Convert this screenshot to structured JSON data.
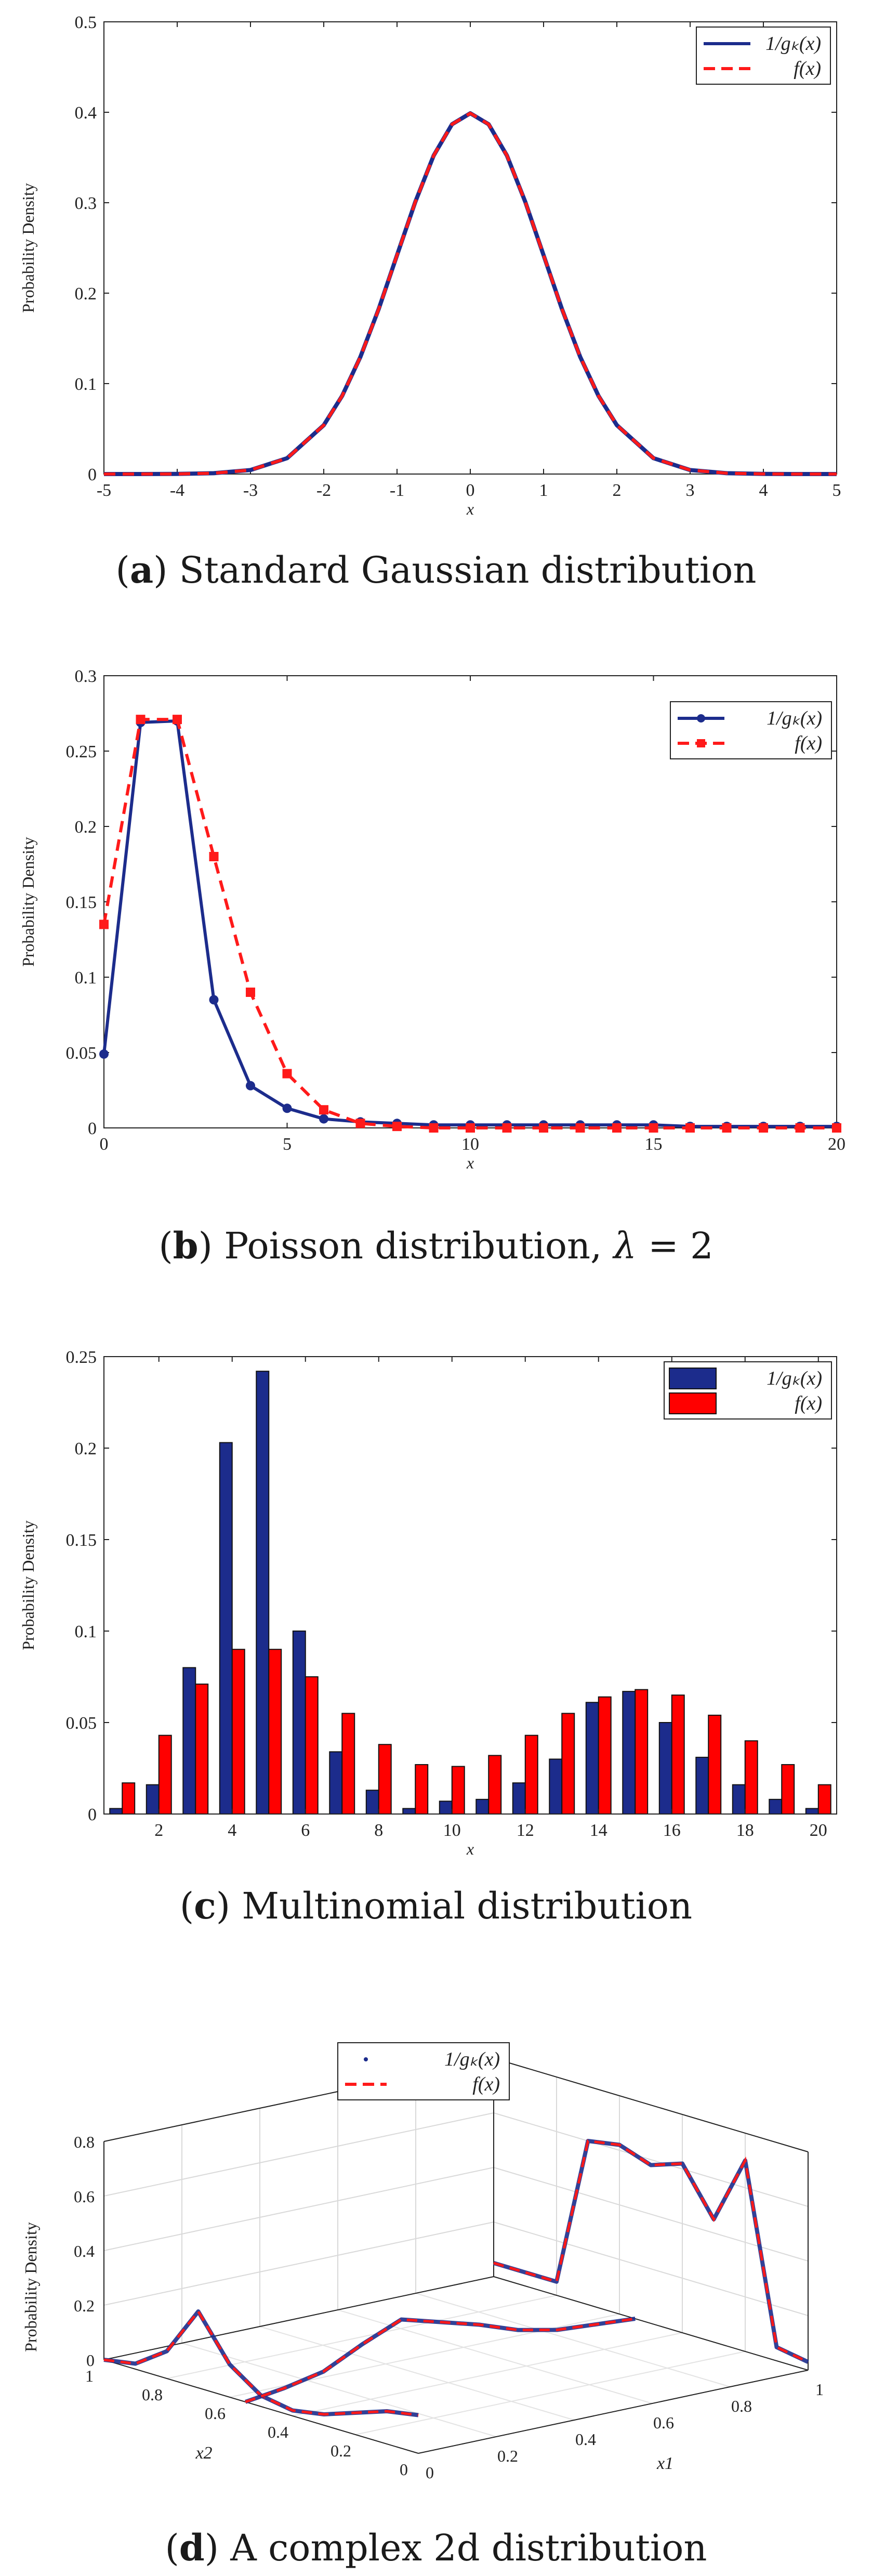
{
  "chart_data": [
    {
      "type": "line",
      "id": "a",
      "ylabel": "Probability Density",
      "xlabel": "x",
      "xlim": [
        -5,
        5
      ],
      "ylim": [
        0,
        0.5
      ],
      "xticks": [
        -5,
        -4,
        -3,
        -2,
        -1,
        0,
        1,
        2,
        3,
        4,
        5
      ],
      "yticks": [
        0,
        0.1,
        0.2,
        0.3,
        0.4,
        0.5
      ],
      "xtick_labels": [
        "-5",
        "-4",
        "-3",
        "-2",
        "-1",
        "0",
        "1",
        "2",
        "3",
        "4",
        "5"
      ],
      "ytick_labels": [
        "0",
        "0.1",
        "0.2",
        "0.3",
        "0.4",
        "0.5"
      ],
      "legend_position": "top-right",
      "series": [
        {
          "name": "1/g_k(x)",
          "label": "1/gₖ(x)",
          "color": "#1c2c8c",
          "style": "solid",
          "x": [
            -5,
            -4.5,
            -4,
            -3.5,
            -3,
            -2.5,
            -2,
            -1.75,
            -1.5,
            -1.25,
            -1,
            -0.75,
            -0.5,
            -0.25,
            0,
            0.25,
            0.5,
            0.75,
            1,
            1.25,
            1.5,
            1.75,
            2,
            2.5,
            3,
            3.5,
            4,
            4.5,
            5
          ],
          "y": [
            0,
            0,
            0.0001,
            0.0009,
            0.0044,
            0.0175,
            0.054,
            0.0863,
            0.1295,
            0.1826,
            0.242,
            0.3011,
            0.3521,
            0.3867,
            0.3989,
            0.3867,
            0.3521,
            0.3011,
            0.242,
            0.1826,
            0.1295,
            0.0863,
            0.054,
            0.0175,
            0.0044,
            0.0009,
            0.0001,
            0,
            0
          ]
        },
        {
          "name": "f(x)",
          "label": "f(x)",
          "color": "#ff1a1a",
          "style": "dashed",
          "x": [
            -5,
            -4.5,
            -4,
            -3.5,
            -3,
            -2.5,
            -2,
            -1.75,
            -1.5,
            -1.25,
            -1,
            -0.75,
            -0.5,
            -0.25,
            0,
            0.25,
            0.5,
            0.75,
            1,
            1.25,
            1.5,
            1.75,
            2,
            2.5,
            3,
            3.5,
            4,
            4.5,
            5
          ],
          "y": [
            0,
            0,
            0.0001,
            0.0009,
            0.0044,
            0.0175,
            0.054,
            0.0863,
            0.1295,
            0.1826,
            0.242,
            0.3011,
            0.3521,
            0.3867,
            0.3989,
            0.3867,
            0.3521,
            0.3011,
            0.242,
            0.1826,
            0.1295,
            0.0863,
            0.054,
            0.0175,
            0.0044,
            0.0009,
            0.0001,
            0,
            0
          ]
        }
      ],
      "caption": {
        "letter": "a",
        "text": " Standard Gaussian distribution"
      }
    },
    {
      "type": "line",
      "id": "b",
      "ylabel": "Probability Density",
      "xlabel": "x",
      "xlim": [
        0,
        20
      ],
      "ylim": [
        0,
        0.3
      ],
      "xticks": [
        0,
        5,
        10,
        15,
        20
      ],
      "yticks": [
        0,
        0.05,
        0.1,
        0.15,
        0.2,
        0.25,
        0.3
      ],
      "xtick_labels": [
        "0",
        "5",
        "10",
        "15",
        "20"
      ],
      "ytick_labels": [
        "0",
        "0.05",
        "0.1",
        "0.15",
        "0.2",
        "0.25",
        "0.3"
      ],
      "legend_position": "top-right",
      "series": [
        {
          "name": "1/g_k(x)",
          "label": "1/gₖ(x)",
          "color": "#1c2c8c",
          "style": "solid-marker-circle",
          "x": [
            0,
            1,
            2,
            3,
            4,
            5,
            6,
            7,
            8,
            9,
            10,
            11,
            12,
            13,
            14,
            15,
            16,
            17,
            18,
            19,
            20
          ],
          "y": [
            0.049,
            0.269,
            0.27,
            0.085,
            0.028,
            0.013,
            0.006,
            0.004,
            0.003,
            0.002,
            0.002,
            0.002,
            0.002,
            0.002,
            0.002,
            0.002,
            0.001,
            0.001,
            0.001,
            0.001,
            0.001
          ]
        },
        {
          "name": "f(x)",
          "label": "f(x)",
          "color": "#ff1a1a",
          "style": "dashed-marker-square",
          "x": [
            0,
            1,
            2,
            3,
            4,
            5,
            6,
            7,
            8,
            9,
            10,
            11,
            12,
            13,
            14,
            15,
            16,
            17,
            18,
            19,
            20
          ],
          "y": [
            0.135,
            0.271,
            0.271,
            0.18,
            0.09,
            0.036,
            0.012,
            0.003,
            0.001,
            0,
            0,
            0,
            0,
            0,
            0,
            0,
            0,
            0,
            0,
            0,
            0
          ]
        }
      ],
      "caption": {
        "letter": "b",
        "text": " Poisson distribution, ",
        "math": "λ",
        "math_rest": " = 2"
      }
    },
    {
      "type": "bar",
      "id": "c",
      "ylabel": "Probability Density",
      "xlabel": "x",
      "xlim": [
        0.5,
        20.5
      ],
      "ylim": [
        0,
        0.25
      ],
      "xticks": [
        2,
        4,
        6,
        8,
        10,
        12,
        14,
        16,
        18,
        20
      ],
      "yticks": [
        0,
        0.05,
        0.1,
        0.15,
        0.2,
        0.25
      ],
      "xtick_labels": [
        "2",
        "4",
        "6",
        "8",
        "10",
        "12",
        "14",
        "16",
        "18",
        "20"
      ],
      "ytick_labels": [
        "0",
        "0.05",
        "0.1",
        "0.15",
        "0.2",
        "0.25"
      ],
      "categories": [
        1,
        2,
        3,
        4,
        5,
        6,
        7,
        8,
        9,
        10,
        11,
        12,
        13,
        14,
        15,
        16,
        17,
        18,
        19,
        20
      ],
      "legend_position": "top-right",
      "series": [
        {
          "name": "1/g_k(x)",
          "label": "1/gₖ(x)",
          "color": "#1c2c8c",
          "values": [
            0.003,
            0.016,
            0.08,
            0.203,
            0.242,
            0.1,
            0.034,
            0.013,
            0.003,
            0.007,
            0.008,
            0.017,
            0.03,
            0.061,
            0.067,
            0.05,
            0.031,
            0.016,
            0.008,
            0.003
          ]
        },
        {
          "name": "f(x)",
          "label": "f(x)",
          "color": "#ff0000",
          "values": [
            0.017,
            0.043,
            0.071,
            0.09,
            0.09,
            0.075,
            0.055,
            0.038,
            0.027,
            0.026,
            0.032,
            0.043,
            0.055,
            0.064,
            0.068,
            0.065,
            0.054,
            0.04,
            0.027,
            0.016
          ]
        }
      ],
      "caption": {
        "letter": "c",
        "text": " Multinomial distribution"
      }
    },
    {
      "type": "line",
      "id": "d",
      "projection": "3d",
      "ylabel": "Probability Density",
      "x1label": "x1",
      "x2label": "x2",
      "zlim": [
        0,
        0.8
      ],
      "zticks": [
        0,
        0.2,
        0.4,
        0.6,
        0.8
      ],
      "ztick_labels": [
        "0",
        "0.2",
        "0.4",
        "0.6",
        "0.8"
      ],
      "x1ticks": [
        0,
        0.2,
        0.4,
        0.6,
        0.8,
        1
      ],
      "x1tick_labels": [
        "0",
        "0.2",
        "0.4",
        "0.6",
        "0.8",
        "1"
      ],
      "x2ticks": [
        0,
        0.2,
        0.4,
        0.6,
        0.8,
        1
      ],
      "x2tick_labels": [
        "0",
        "0.2",
        "0.4",
        "0.6",
        "0.8",
        "1"
      ],
      "legend_position": "top-center",
      "series": [
        {
          "name": "1/g_k(x)",
          "label": "1/gₖ(x)",
          "color": "#1c2c8c",
          "style": "noisy-points"
        },
        {
          "name": "f(x)",
          "label": "f(x)",
          "color": "#ff1a1a",
          "style": "dashed"
        }
      ],
      "curves": {
        "profile_x2": {
          "x2": [
            1,
            0.9,
            0.8,
            0.7,
            0.6,
            0.5,
            0.4,
            0.3,
            0.2,
            0.1,
            0
          ],
          "z": [
            0,
            0.02,
            0.1,
            0.28,
            0.12,
            0.04,
            0.02,
            0.04,
            0.08,
            0.12,
            0.14
          ]
        },
        "profile_x1": {
          "x1": [
            0,
            0.1,
            0.2,
            0.3,
            0.4,
            0.5,
            0.6,
            0.7,
            0.8,
            0.9,
            1
          ],
          "z": [
            0,
            0.02,
            0.05,
            0.12,
            0.18,
            0.14,
            0.1,
            0.05,
            0.02,
            0.01,
            0
          ]
        },
        "back_panel": {
          "x1": [
            0,
            0.1,
            0.2,
            0.3,
            0.4,
            0.5,
            0.6,
            0.7,
            0.8,
            0.9,
            1
          ],
          "z": [
            0.05,
            0.05,
            0.05,
            0.6,
            0.62,
            0.58,
            0.62,
            0.45,
            0.7,
            0.05,
            0.03
          ]
        }
      },
      "caption": {
        "letter": "d",
        "text": " A complex 2d distribution"
      }
    }
  ]
}
